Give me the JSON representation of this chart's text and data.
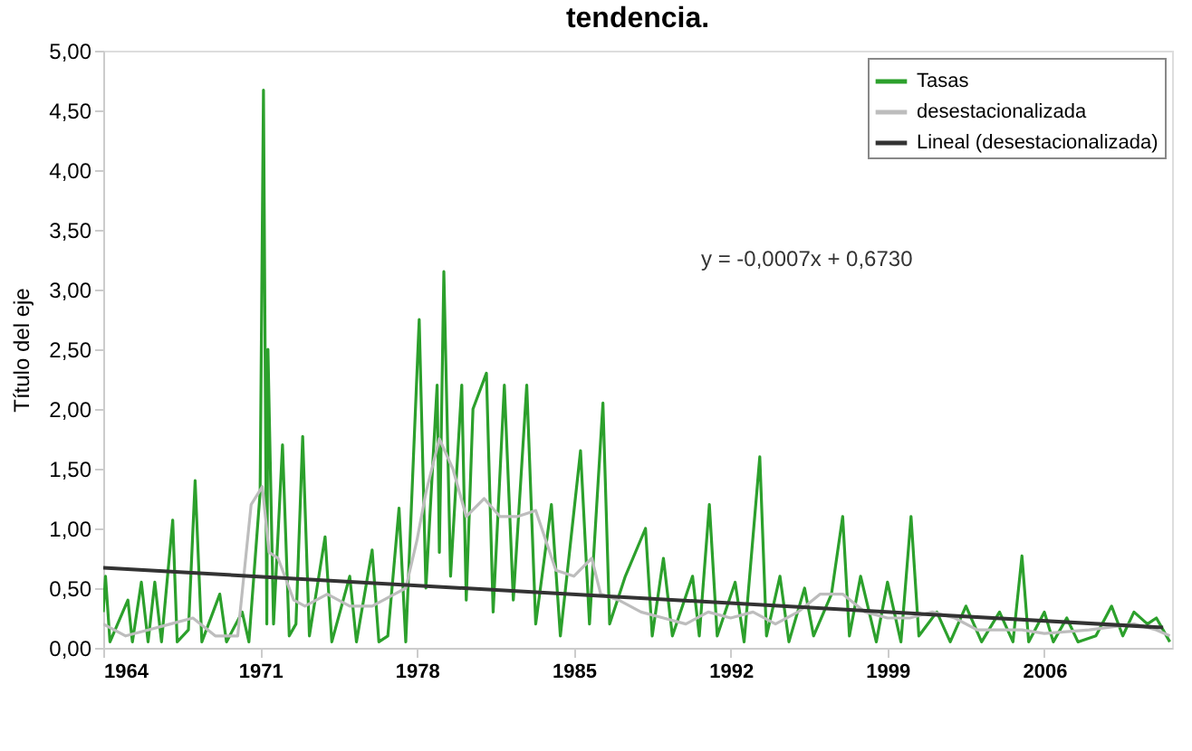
{
  "chart_data": {
    "type": "line",
    "title": "tendencia.",
    "ylabel": "Título del eje",
    "xlim": [
      1964,
      2011.7
    ],
    "xticks": [
      1964,
      1971,
      1978,
      1985,
      1992,
      1999,
      2006
    ],
    "ylim": [
      0,
      5
    ],
    "yticks": [
      {
        "value": 0,
        "label": "0,00"
      },
      {
        "value": 0.5,
        "label": "0,50"
      },
      {
        "value": 1,
        "label": "1,00"
      },
      {
        "value": 1.5,
        "label": "1,50"
      },
      {
        "value": 2,
        "label": "2,00"
      },
      {
        "value": 2.5,
        "label": "2,50"
      },
      {
        "value": 3,
        "label": "3,00"
      },
      {
        "value": 3.5,
        "label": "3,50"
      },
      {
        "value": 4,
        "label": "4,00"
      },
      {
        "value": 4.5,
        "label": "4,50"
      },
      {
        "value": 5,
        "label": "5,00"
      }
    ],
    "grid": false,
    "legend": "top right",
    "line_style": "solid",
    "marker": "none",
    "annotations": [
      "y = -0,0007x + 0,6730"
    ],
    "series": [
      {
        "name": "Tasas",
        "color": "#2ca02c",
        "x": [
          1964.0,
          1964.1,
          1964.3,
          1965.1,
          1965.3,
          1965.7,
          1966.0,
          1966.3,
          1966.6,
          1967.1,
          1967.3,
          1967.8,
          1968.1,
          1968.4,
          1969.2,
          1969.5,
          1970.2,
          1970.5,
          1971.0,
          1971.15,
          1971.3,
          1971.35,
          1971.6,
          1972.0,
          1972.3,
          1972.6,
          1972.9,
          1973.2,
          1973.9,
          1974.2,
          1975.0,
          1975.3,
          1976.0,
          1976.3,
          1976.7,
          1977.2,
          1977.5,
          1978.1,
          1978.4,
          1978.9,
          1979.0,
          1979.2,
          1979.5,
          1980.0,
          1980.2,
          1980.5,
          1981.1,
          1981.4,
          1981.9,
          1982.3,
          1982.9,
          1983.3,
          1984.0,
          1984.4,
          1985.3,
          1985.7,
          1986.3,
          1986.6,
          1987.3,
          1988.2,
          1988.5,
          1989.0,
          1989.4,
          1990.3,
          1990.6,
          1991.05,
          1991.4,
          1992.2,
          1992.6,
          1993.3,
          1993.6,
          1994.2,
          1994.6,
          1995.3,
          1995.7,
          1996.5,
          1997.0,
          1997.3,
          1997.8,
          1998.5,
          1999.0,
          1999.6,
          2000.05,
          2000.4,
          2001.2,
          2001.8,
          2002.5,
          2003.2,
          2004.0,
          2004.6,
          2005.0,
          2005.3,
          2006.0,
          2006.4,
          2007.0,
          2007.5,
          2008.3,
          2009.0,
          2009.5,
          2010.0,
          2010.6,
          2011.0,
          2011.6
        ],
        "values": [
          0.3,
          0.6,
          0.05,
          0.4,
          0.05,
          0.55,
          0.05,
          0.55,
          0.05,
          1.07,
          0.05,
          0.15,
          1.4,
          0.05,
          0.45,
          0.05,
          0.3,
          0.05,
          1.3,
          4.67,
          0.2,
          2.5,
          0.2,
          1.7,
          0.1,
          0.2,
          1.77,
          0.1,
          0.93,
          0.05,
          0.6,
          0.05,
          0.82,
          0.05,
          0.1,
          1.17,
          0.05,
          2.75,
          0.5,
          2.2,
          0.8,
          3.15,
          0.6,
          2.2,
          0.4,
          2.0,
          2.3,
          0.3,
          2.2,
          0.4,
          2.2,
          0.2,
          1.2,
          0.1,
          1.65,
          0.2,
          2.05,
          0.2,
          0.6,
          1.0,
          0.1,
          0.75,
          0.1,
          0.6,
          0.1,
          1.2,
          0.1,
          0.55,
          0.05,
          1.6,
          0.1,
          0.6,
          0.05,
          0.5,
          0.1,
          0.45,
          1.1,
          0.1,
          0.6,
          0.05,
          0.55,
          0.05,
          1.1,
          0.1,
          0.3,
          0.05,
          0.35,
          0.05,
          0.3,
          0.05,
          0.77,
          0.05,
          0.3,
          0.05,
          0.25,
          0.05,
          0.1,
          0.35,
          0.1,
          0.3,
          0.2,
          0.25,
          0.05
        ]
      },
      {
        "name": "desestacionalizada",
        "color": "#bdbdbd",
        "x": [
          1964.0,
          1965.0,
          1966.0,
          1967.0,
          1968.0,
          1969.0,
          1970.0,
          1970.6,
          1971.1,
          1971.4,
          1971.8,
          1972.5,
          1973.0,
          1974.0,
          1975.0,
          1976.0,
          1977.0,
          1977.5,
          1978.0,
          1978.4,
          1979.0,
          1979.6,
          1980.2,
          1981.0,
          1981.7,
          1982.5,
          1983.3,
          1984.2,
          1985.0,
          1985.8,
          1986.2,
          1987.0,
          1988.0,
          1989.0,
          1990.0,
          1991.0,
          1992.0,
          1993.0,
          1994.0,
          1995.0,
          1996.0,
          1997.0,
          1998.0,
          1999.0,
          2000.0,
          2001.0,
          2002.0,
          2003.0,
          2004.0,
          2005.0,
          2006.0,
          2008.0,
          2010.0,
          2011.0,
          2011.6
        ],
        "values": [
          0.2,
          0.1,
          0.15,
          0.2,
          0.25,
          0.1,
          0.1,
          1.2,
          1.35,
          0.8,
          0.75,
          0.4,
          0.35,
          0.45,
          0.35,
          0.35,
          0.45,
          0.5,
          0.9,
          1.3,
          1.75,
          1.5,
          1.1,
          1.25,
          1.1,
          1.1,
          1.15,
          0.65,
          0.6,
          0.75,
          0.45,
          0.4,
          0.3,
          0.25,
          0.2,
          0.3,
          0.25,
          0.3,
          0.2,
          0.3,
          0.45,
          0.45,
          0.3,
          0.25,
          0.25,
          0.3,
          0.25,
          0.15,
          0.15,
          0.15,
          0.12,
          0.15,
          0.2,
          0.15,
          0.1
        ]
      },
      {
        "name": "Lineal (desestacionalizada)",
        "color": "#333333",
        "x": [
          1964.0,
          2011.3
        ],
        "values": [
          0.67,
          0.17
        ]
      }
    ]
  }
}
